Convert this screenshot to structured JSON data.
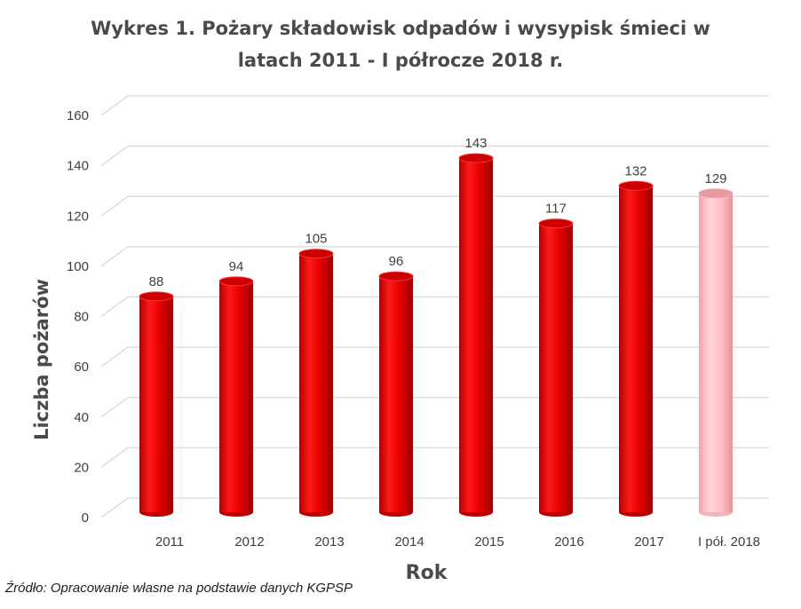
{
  "chart_data": {
    "type": "bar",
    "title": "Wykres 1. Pożary składowisk odpadów i wysypisk śmieci w latach 2011 - I półrocze 2018 r.",
    "title_lines": [
      "Wykres 1. Pożary składowisk odpadów i wysypisk śmieci w",
      "latach 2011 - I półrocze 2018 r."
    ],
    "xlabel": "Rok",
    "ylabel": "Liczba pożarów",
    "categories": [
      "2011",
      "2012",
      "2013",
      "2014",
      "2015",
      "2016",
      "2017",
      "I pół. 2018"
    ],
    "values": [
      88,
      94,
      105,
      96,
      143,
      117,
      132,
      129
    ],
    "ylim": [
      0,
      160
    ],
    "yticks": [
      0,
      20,
      40,
      60,
      80,
      100,
      120,
      140,
      160
    ],
    "grid": true,
    "bar_style": "3d-cylinder",
    "colors": {
      "bar": "#e60000",
      "bar_highlight": "#ffb3b8",
      "grid": "#d9d9d9"
    }
  },
  "source_note": "Źródło: Opracowanie własne na podstawie danych KGPSP"
}
